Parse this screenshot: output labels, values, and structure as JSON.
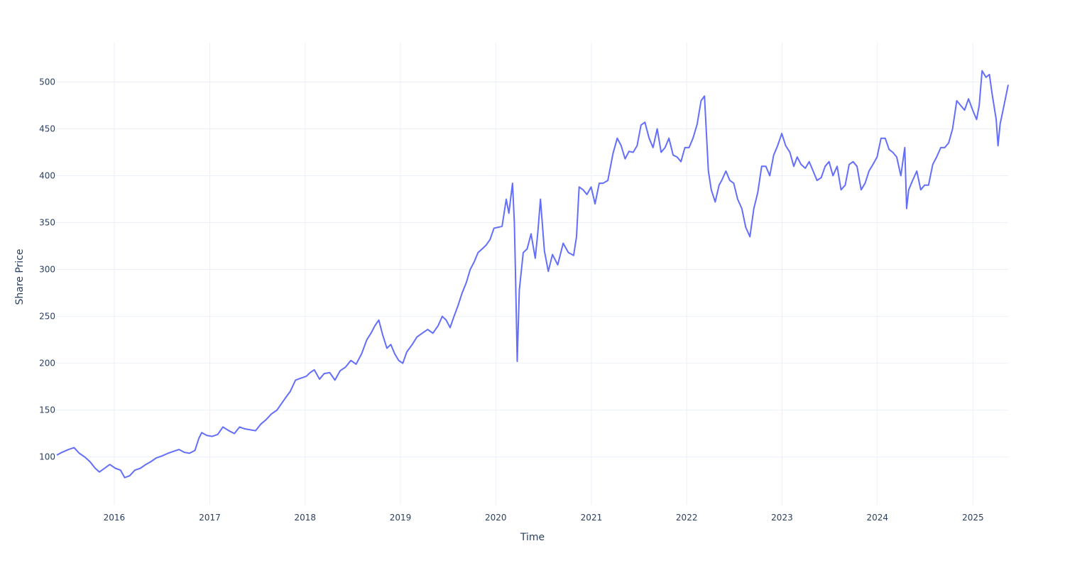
{
  "chart_data": {
    "type": "line",
    "title": "",
    "xlabel": "Time",
    "ylabel": "Share Price",
    "xlim": [
      "2015-05-26",
      "2025-05-16"
    ],
    "ylim": [
      49,
      542
    ],
    "grid": true,
    "legend": "none",
    "x_ticks": [
      "2016",
      "2017",
      "2018",
      "2019",
      "2020",
      "2021",
      "2022",
      "2023",
      "2024",
      "2025"
    ],
    "y_ticks": [
      100,
      150,
      200,
      250,
      300,
      350,
      400,
      450,
      500
    ],
    "series": [
      {
        "color": "#636efa",
        "x": [
          "2015-05-26",
          "2015-06-15",
          "2015-07-10",
          "2015-07-31",
          "2015-08-20",
          "2015-09-10",
          "2015-09-30",
          "2015-10-20",
          "2015-11-05",
          "2015-11-25",
          "2015-12-15",
          "2016-01-05",
          "2016-01-25",
          "2016-02-10",
          "2016-02-29",
          "2016-03-20",
          "2016-04-10",
          "2016-05-01",
          "2016-05-20",
          "2016-06-10",
          "2016-07-01",
          "2016-07-25",
          "2016-08-15",
          "2016-09-05",
          "2016-09-25",
          "2016-10-15",
          "2016-11-05",
          "2016-11-20",
          "2016-12-01",
          "2016-12-20",
          "2017-01-10",
          "2017-01-31",
          "2017-02-20",
          "2017-03-15",
          "2017-04-05",
          "2017-04-25",
          "2017-05-15",
          "2017-06-05",
          "2017-06-25",
          "2017-07-15",
          "2017-08-05",
          "2017-08-25",
          "2017-09-15",
          "2017-10-05",
          "2017-10-20",
          "2017-11-05",
          "2017-11-25",
          "2017-12-15",
          "2018-01-05",
          "2018-01-20",
          "2018-02-05",
          "2018-02-25",
          "2018-03-15",
          "2018-04-05",
          "2018-04-25",
          "2018-05-15",
          "2018-06-05",
          "2018-06-25",
          "2018-07-15",
          "2018-08-05",
          "2018-08-25",
          "2018-09-10",
          "2018-09-25",
          "2018-10-10",
          "2018-10-25",
          "2018-11-10",
          "2018-11-25",
          "2018-12-10",
          "2018-12-25",
          "2019-01-10",
          "2019-01-25",
          "2019-02-15",
          "2019-03-05",
          "2019-03-25",
          "2019-04-15",
          "2019-05-05",
          "2019-05-25",
          "2019-06-10",
          "2019-06-25",
          "2019-07-10",
          "2019-07-25",
          "2019-08-10",
          "2019-08-25",
          "2019-09-10",
          "2019-09-25",
          "2019-10-10",
          "2019-10-25",
          "2019-11-10",
          "2019-11-25",
          "2019-12-10",
          "2019-12-25",
          "2020-01-10",
          "2020-01-25",
          "2020-02-10",
          "2020-02-20",
          "2020-03-05",
          "2020-03-12",
          "2020-03-16",
          "2020-03-23",
          "2020-03-31",
          "2020-04-15",
          "2020-04-30",
          "2020-05-15",
          "2020-05-31",
          "2020-06-10",
          "2020-06-20",
          "2020-07-05",
          "2020-07-20",
          "2020-08-05",
          "2020-08-25",
          "2020-09-15",
          "2020-10-05",
          "2020-10-25",
          "2020-11-05",
          "2020-11-15",
          "2020-11-30",
          "2020-12-15",
          "2020-12-31",
          "2021-01-15",
          "2021-01-31",
          "2021-02-15",
          "2021-03-05",
          "2021-03-25",
          "2021-04-10",
          "2021-04-25",
          "2021-05-10",
          "2021-05-25",
          "2021-06-10",
          "2021-06-25",
          "2021-07-10",
          "2021-07-25",
          "2021-08-10",
          "2021-08-25",
          "2021-09-10",
          "2021-09-25",
          "2021-10-10",
          "2021-10-25",
          "2021-11-10",
          "2021-11-25",
          "2021-12-10",
          "2021-12-25",
          "2022-01-10",
          "2022-01-25",
          "2022-02-10",
          "2022-02-25",
          "2022-03-10",
          "2022-03-25",
          "2022-04-05",
          "2022-04-20",
          "2022-05-05",
          "2022-05-15",
          "2022-05-31",
          "2022-06-15",
          "2022-06-30",
          "2022-07-15",
          "2022-07-31",
          "2022-08-15",
          "2022-08-31",
          "2022-09-15",
          "2022-09-30",
          "2022-10-15",
          "2022-10-31",
          "2022-11-15",
          "2022-11-30",
          "2022-12-15",
          "2022-12-31",
          "2023-01-15",
          "2023-01-31",
          "2023-02-15",
          "2023-02-28",
          "2023-03-15",
          "2023-03-31",
          "2023-04-15",
          "2023-04-30",
          "2023-05-15",
          "2023-05-31",
          "2023-06-15",
          "2023-06-30",
          "2023-07-15",
          "2023-07-31",
          "2023-08-15",
          "2023-08-31",
          "2023-09-15",
          "2023-09-30",
          "2023-10-15",
          "2023-10-31",
          "2023-11-15",
          "2023-11-30",
          "2023-12-15",
          "2023-12-31",
          "2024-01-15",
          "2024-01-31",
          "2024-02-15",
          "2024-02-29",
          "2024-03-15",
          "2024-03-31",
          "2024-04-15",
          "2024-04-22",
          "2024-04-30",
          "2024-05-15",
          "2024-05-31",
          "2024-06-15",
          "2024-06-30",
          "2024-07-15",
          "2024-07-31",
          "2024-08-15",
          "2024-08-31",
          "2024-09-15",
          "2024-09-30",
          "2024-10-15",
          "2024-10-31",
          "2024-11-15",
          "2024-11-30",
          "2024-12-15",
          "2024-12-31",
          "2025-01-15",
          "2025-01-25",
          "2025-02-05",
          "2025-02-20",
          "2025-03-05",
          "2025-03-15",
          "2025-03-31",
          "2025-04-07",
          "2025-04-15",
          "2025-04-30",
          "2025-05-16"
        ],
        "values": [
          102,
          105,
          108,
          110,
          104,
          100,
          95,
          88,
          84,
          88,
          92,
          88,
          86,
          78,
          80,
          86,
          88,
          92,
          95,
          99,
          101,
          104,
          106,
          108,
          105,
          104,
          107,
          120,
          126,
          123,
          122,
          124,
          132,
          128,
          125,
          132,
          130,
          129,
          128,
          135,
          140,
          146,
          150,
          158,
          164,
          170,
          182,
          184,
          186,
          190,
          193,
          183,
          189,
          190,
          182,
          192,
          196,
          203,
          199,
          210,
          225,
          232,
          240,
          246,
          230,
          216,
          220,
          210,
          203,
          200,
          212,
          220,
          228,
          232,
          236,
          232,
          240,
          250,
          246,
          238,
          250,
          262,
          275,
          286,
          300,
          308,
          318,
          322,
          326,
          332,
          344,
          345,
          346,
          375,
          360,
          392,
          350,
          300,
          202,
          278,
          318,
          322,
          338,
          312,
          340,
          375,
          320,
          298,
          316,
          305,
          328,
          318,
          315,
          335,
          388,
          385,
          380,
          388,
          370,
          392,
          392,
          395,
          424,
          440,
          432,
          418,
          426,
          425,
          432,
          454,
          457,
          440,
          430,
          450,
          425,
          430,
          440,
          422,
          420,
          415,
          430,
          430,
          440,
          455,
          480,
          485,
          405,
          385,
          372,
          390,
          395,
          405,
          395,
          392,
          375,
          365,
          345,
          335,
          365,
          382,
          410,
          410,
          400,
          422,
          432,
          445,
          432,
          425,
          410,
          420,
          412,
          408,
          415,
          405,
          395,
          398,
          410,
          415,
          400,
          410,
          385,
          390,
          412,
          415,
          410,
          385,
          392,
          405,
          412,
          420,
          440,
          440,
          428,
          425,
          420,
          400,
          430,
          365,
          385,
          395,
          405,
          385,
          390,
          390,
          412,
          420,
          430,
          430,
          435,
          450,
          480,
          475,
          470,
          482,
          470,
          460,
          475,
          512,
          505,
          508,
          488,
          460,
          432,
          455,
          475,
          497
        ]
      }
    ]
  }
}
